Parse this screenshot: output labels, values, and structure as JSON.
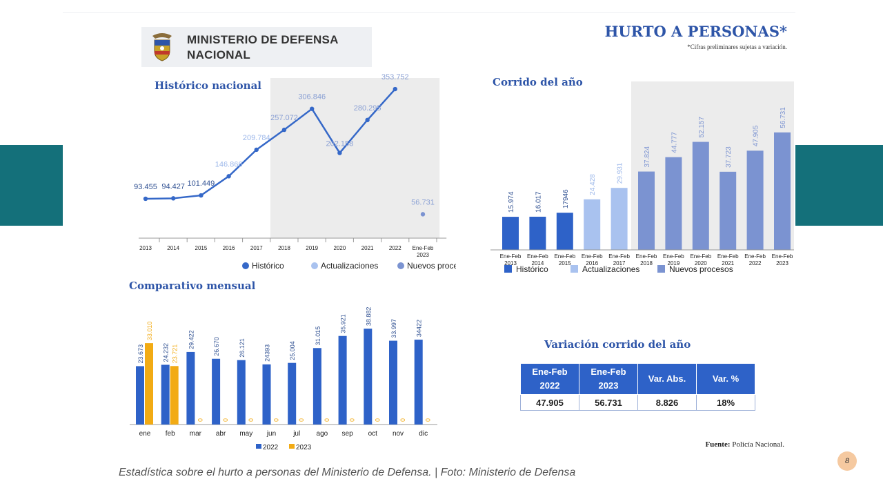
{
  "header": {
    "ministry": [
      "MINISTERIO DE DEFENSA",
      "NACIONAL"
    ],
    "title": "HURTO A PERSONAS*",
    "note": "*Cifras preliminares sujetas a variación."
  },
  "colors": {
    "historico": "#3568c8",
    "actualizaciones": "#a9c2ef",
    "nuevos": "#7b93d1",
    "y2022": "#2e62c8",
    "y2023": "#f2ab14",
    "teal": "#14707a",
    "title": "#2e55a8"
  },
  "chart_data": [
    {
      "id": "historico",
      "type": "line",
      "title": "Histórico nacional",
      "categories": [
        "2013",
        "2014",
        "2015",
        "2016",
        "2017",
        "2018",
        "2019",
        "2020",
        "2021",
        "2022",
        "Ene-Feb 2023"
      ],
      "values": [
        93455,
        94427,
        101449,
        146866,
        209784,
        257072,
        306846,
        202158,
        280295,
        353752,
        56731
      ],
      "labels": [
        "93.455",
        "94.427",
        "101.449",
        "146.866",
        "209.784",
        "257.072",
        "306.846",
        "202.158",
        "280.295",
        "353.752",
        "56.731"
      ],
      "point_series": [
        "Histórico",
        "Histórico",
        "Histórico",
        "Actualizaciones",
        "Actualizaciones",
        "Nuevos procesos",
        "Nuevos procesos",
        "Nuevos procesos",
        "Nuevos procesos",
        "Nuevos procesos",
        "Nuevos procesos"
      ],
      "legend": [
        "Histórico",
        "Actualizaciones",
        "Nuevos procesos"
      ],
      "shaded_from": "2018",
      "ylim": [
        0,
        380000
      ]
    },
    {
      "id": "corrido",
      "type": "bar",
      "title": "Corrido del año",
      "categories": [
        "Ene-Feb 2013",
        "Ene-Feb 2014",
        "Ene-Feb 2015",
        "Ene-Feb 2016",
        "Ene-Feb 2017",
        "Ene-Feb 2018",
        "Ene-Feb 2019",
        "Ene-Feb 2020",
        "Ene-Feb 2021",
        "Ene-Feb 2022",
        "Ene-Feb 2023"
      ],
      "values": [
        15974,
        16017,
        17946,
        24428,
        29931,
        37824,
        44777,
        52157,
        37723,
        47905,
        56731
      ],
      "labels": [
        "15.974",
        "16.017",
        "17946",
        "24.428",
        "29.931",
        "37.824",
        "44.777",
        "52.157",
        "37.723",
        "47.905",
        "56.731"
      ],
      "point_series": [
        "Histórico",
        "Histórico",
        "Histórico",
        "Actualizaciones",
        "Actualizaciones",
        "Nuevos procesos",
        "Nuevos procesos",
        "Nuevos procesos",
        "Nuevos procesos",
        "Nuevos procesos",
        "Nuevos procesos"
      ],
      "legend": [
        "Histórico",
        "Actualizaciones",
        "Nuevos procesos"
      ],
      "shaded_from": "Ene-Feb 2018",
      "ylim": [
        0,
        60000
      ]
    },
    {
      "id": "mensual",
      "type": "bar",
      "title": "Comparativo mensual",
      "categories": [
        "ene",
        "feb",
        "mar",
        "abr",
        "may",
        "jun",
        "jul",
        "ago",
        "sep",
        "oct",
        "nov",
        "dic"
      ],
      "series": [
        {
          "name": "2022",
          "values": [
            23673,
            24232,
            29422,
            26670,
            26121,
            24393,
            25004,
            31015,
            35921,
            38882,
            33997,
            34422
          ],
          "labels": [
            "23.673",
            "24.232",
            "29.422",
            "26.670",
            "26.121",
            "24393",
            "25.004",
            "31.015",
            "35.921",
            "38.882",
            "33.997",
            "34422"
          ]
        },
        {
          "name": "2023",
          "values": [
            33010,
            23721,
            0,
            0,
            0,
            0,
            0,
            0,
            0,
            0,
            0,
            0
          ],
          "labels": [
            "33.010",
            "23.721",
            "0",
            "0",
            "0",
            "0",
            "0",
            "0",
            "0",
            "0",
            "0",
            "0"
          ]
        }
      ],
      "ylim": [
        0,
        42000
      ]
    }
  ],
  "variation": {
    "title": "Variación corrido del año",
    "headers": [
      [
        "Ene-Feb",
        "2022"
      ],
      [
        "Ene-Feb",
        "2023"
      ],
      [
        "Var. Abs."
      ],
      [
        "Var. %"
      ]
    ],
    "row": [
      "47.905",
      "56.731",
      "8.826",
      "18%"
    ]
  },
  "source": {
    "label": "Fuente:",
    "text": "Policía Nacional."
  },
  "caption": "Estadística sobre el hurto a personas del Ministerio de Defensa. | Foto: Ministerio de Defensa",
  "page_number": "8"
}
